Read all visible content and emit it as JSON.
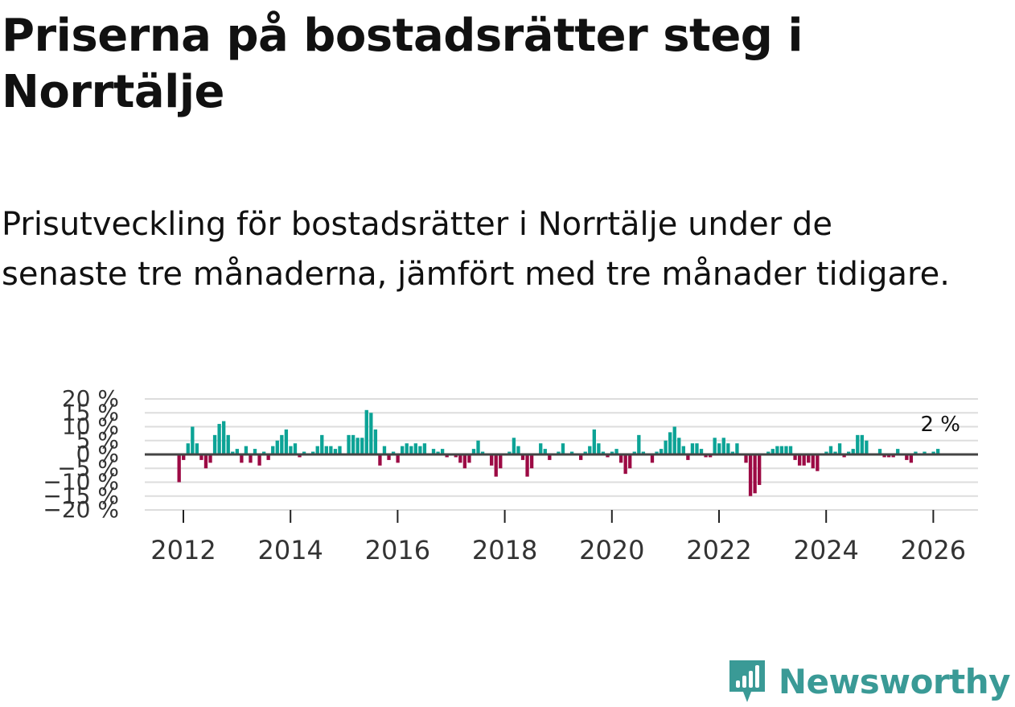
{
  "title": "Priserna på bostadsrätter steg i Norrtälje",
  "subtitle": "Prisutveckling för bostadsrätter i Norrtälje under de senaste tre månaderna, jämfört med tre månader tidigare.",
  "logo": {
    "name": "Newsworthy"
  },
  "colors": {
    "positive": "#0ca396",
    "negative": "#9c0a44",
    "zero_line": "#444444",
    "grid": "#dddddd"
  },
  "chart_data": {
    "type": "bar",
    "title": "Priserna på bostadsrätter steg i Norrtälje",
    "xlabel": "",
    "ylabel": "",
    "ylim": [
      -20,
      20
    ],
    "y_ticks": [
      20,
      15,
      10,
      5,
      0,
      -5,
      -10,
      -15,
      -20
    ],
    "y_tick_labels": [
      "20 %",
      "15 %",
      "10 %",
      "5 %",
      "0 %",
      "−5 %",
      "−10 %",
      "−15 %",
      "−20 %"
    ],
    "x_ticks": [
      2012,
      2014,
      2016,
      2018,
      2020,
      2022,
      2024,
      2026
    ],
    "x_tick_labels": [
      "2012",
      "2014",
      "2016",
      "2018",
      "2020",
      "2022",
      "2024",
      "2026"
    ],
    "last_value_label": "2 %",
    "series": [
      {
        "name": "Prisutveckling",
        "start": 2011.92,
        "step_months": 1,
        "values": [
          -10,
          -2,
          4,
          10,
          4,
          -2,
          -5,
          -3,
          7,
          11,
          12,
          7,
          1,
          2,
          -3,
          3,
          -3,
          2,
          -4,
          1,
          -2,
          3,
          5,
          7,
          9,
          3,
          4,
          -1,
          1,
          0,
          1,
          3,
          7,
          3,
          3,
          2,
          3,
          0,
          7,
          7,
          6,
          6,
          16,
          15,
          9,
          -4,
          3,
          -2,
          1,
          -3,
          3,
          4,
          3,
          4,
          3,
          4,
          0,
          2,
          1,
          2,
          -1,
          0,
          -1,
          -3,
          -5,
          -3,
          2,
          5,
          1,
          0,
          -4,
          -8,
          -5,
          0,
          1,
          6,
          3,
          -2,
          -8,
          -5,
          0,
          4,
          2,
          -2,
          0,
          1,
          4,
          0,
          1,
          0,
          -2,
          1,
          3,
          9,
          4,
          1,
          -1,
          1,
          2,
          -3,
          -7,
          -5,
          1,
          7,
          1,
          0,
          -3,
          1,
          2,
          5,
          8,
          10,
          6,
          3,
          -2,
          4,
          4,
          2,
          -1,
          -1,
          6,
          4,
          6,
          4,
          1,
          4,
          0,
          -3,
          -15,
          -14,
          -11,
          0,
          1,
          2,
          3,
          3,
          3,
          3,
          -2,
          -4,
          -4,
          -3,
          -5,
          -6,
          0,
          1,
          3,
          1,
          4,
          -1,
          1,
          2,
          7,
          7,
          5,
          0,
          0,
          2,
          -1,
          -1,
          -1,
          2,
          0,
          -2,
          -3,
          1,
          0,
          1,
          0,
          1,
          2
        ]
      }
    ]
  }
}
